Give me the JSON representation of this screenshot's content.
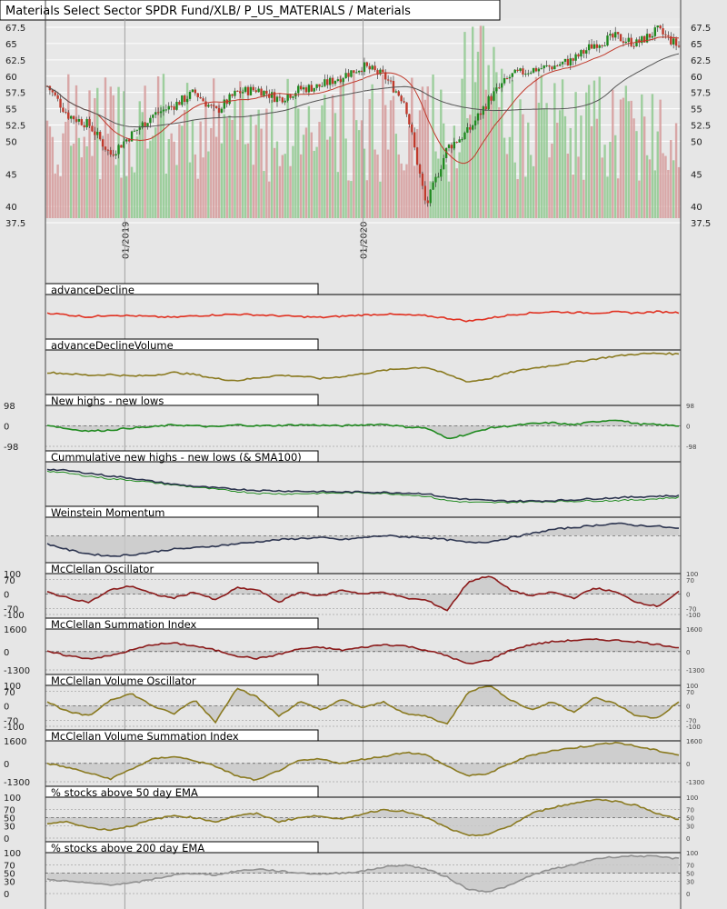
{
  "title": "Materials Select Sector SPDR Fund/XLB/ P_US_MATERIALS / Materials",
  "x_ticks": [
    "01/2019",
    "01/2020"
  ],
  "colors": {
    "background": "#e6e6e6",
    "up_candle": "#1f8a1f",
    "down_candle": "#c0392b",
    "up_volume": "#8fc98f",
    "down_volume": "#d59a9a",
    "sma_short": "#c0392b",
    "sma_long": "#555555",
    "advance_decline": "#e03020",
    "olive": "#8a7a20",
    "green_line": "#1f8a1f",
    "navy": "#2d3550",
    "dark_red": "#8b1a1a",
    "gray_line": "#909090",
    "fill": "#c8c8c8"
  },
  "price_panel": {
    "y_ticks": [
      "67.5",
      "65",
      "62.5",
      "60",
      "57.5",
      "55",
      "52.5",
      "50",
      "45",
      "40",
      "37.5"
    ]
  },
  "panels": [
    {
      "id": "advance-decline",
      "label": "advanceDecline",
      "ticks_left": [],
      "ticks_right": []
    },
    {
      "id": "advance-decline-volume",
      "label": "advanceDeclineVolume",
      "ticks_left": [],
      "ticks_right": []
    },
    {
      "id": "new-highs-lows",
      "label": "New highs - new lows",
      "ticks_left": [
        "98",
        "0",
        "-98"
      ],
      "ticks_right": [
        "98",
        "0",
        "-98"
      ]
    },
    {
      "id": "cumulative-new-highs-lows",
      "label": "Cummulative new highs - new lows (& SMA100)",
      "ticks_left": [],
      "ticks_right": []
    },
    {
      "id": "weinstein-momentum",
      "label": "Weinstein Momentum",
      "ticks_left": [],
      "ticks_right": []
    },
    {
      "id": "mcclellan-oscillator",
      "label": "McClellan Oscillator",
      "ticks_left": [
        "100",
        "70",
        "0",
        "-70",
        "-100"
      ],
      "ticks_right": [
        "100",
        "70",
        "0",
        "-70",
        "-100"
      ]
    },
    {
      "id": "mcclellan-summation",
      "label": "McClellan Summation Index",
      "ticks_left": [
        "1600",
        "0",
        "-1300"
      ],
      "ticks_right": [
        "1600",
        "0",
        "-1300"
      ]
    },
    {
      "id": "mcclellan-volume-oscillator",
      "label": "McClellan Volume Oscillator",
      "ticks_left": [
        "100",
        "70",
        "0",
        "-70",
        "-100"
      ],
      "ticks_right": [
        "100",
        "70",
        "0",
        "-70",
        "-100"
      ]
    },
    {
      "id": "mcclellan-volume-summation",
      "label": "McClellan Volume Summation Index",
      "ticks_left": [
        "1600",
        "0",
        "-1300"
      ],
      "ticks_right": [
        "1600",
        "0",
        "-1300"
      ]
    },
    {
      "id": "pct-above-50ema",
      "label": "% stocks above 50 day EMA",
      "ticks_left": [
        "100",
        "70",
        "50",
        "30",
        "0"
      ],
      "ticks_right": [
        "100",
        "70",
        "50",
        "30",
        "0"
      ]
    },
    {
      "id": "pct-above-200ema",
      "label": "% stocks above 200 day EMA",
      "ticks_left": [
        "100",
        "70",
        "50",
        "30",
        "0"
      ],
      "ticks_right": [
        "100",
        "70",
        "50",
        "30",
        "0"
      ]
    }
  ],
  "chart_data": {
    "type": "line",
    "title": "Materials Select Sector SPDR Fund/XLB/ P_US_MATERIALS / Materials",
    "x_range": [
      "2018-09",
      "2021-05"
    ],
    "x_tick_labels": [
      "01/2019",
      "01/2020"
    ],
    "price": {
      "ylim": [
        37.5,
        67.5
      ],
      "close": [
        {
          "x": "2018-09",
          "y": 58.5
        },
        {
          "x": "2018-10",
          "y": 54.0
        },
        {
          "x": "2018-11",
          "y": 52.5
        },
        {
          "x": "2018-12",
          "y": 48.0
        },
        {
          "x": "2019-01",
          "y": 51.0
        },
        {
          "x": "2019-02",
          "y": 54.0
        },
        {
          "x": "2019-03",
          "y": 55.5
        },
        {
          "x": "2019-04",
          "y": 57.5
        },
        {
          "x": "2019-05",
          "y": 54.5
        },
        {
          "x": "2019-06",
          "y": 57.5
        },
        {
          "x": "2019-07",
          "y": 58.0
        },
        {
          "x": "2019-08",
          "y": 56.5
        },
        {
          "x": "2019-09",
          "y": 58.0
        },
        {
          "x": "2019-10",
          "y": 58.5
        },
        {
          "x": "2019-11",
          "y": 60.0
        },
        {
          "x": "2019-12",
          "y": 61.5
        },
        {
          "x": "2020-01",
          "y": 60.0
        },
        {
          "x": "2020-02",
          "y": 56.0
        },
        {
          "x": "2020-03",
          "y": 40.0
        },
        {
          "x": "2020-04",
          "y": 49.0
        },
        {
          "x": "2020-05",
          "y": 51.5
        },
        {
          "x": "2020-06",
          "y": 56.5
        },
        {
          "x": "2020-07",
          "y": 60.0
        },
        {
          "x": "2020-08",
          "y": 61.0
        },
        {
          "x": "2020-09",
          "y": 61.5
        },
        {
          "x": "2020-10",
          "y": 62.5
        },
        {
          "x": "2020-11",
          "y": 65.0
        },
        {
          "x": "2020-12",
          "y": 66.0
        },
        {
          "x": "2021-01",
          "y": 65.0
        },
        {
          "x": "2021-02",
          "y": 67.0
        },
        {
          "x": "2021-03",
          "y": 64.5
        }
      ]
    },
    "series": [
      {
        "panel": "advance-decline",
        "values": [
          0.55,
          0.5,
          0.45,
          0.5,
          0.48,
          0.46,
          0.44,
          0.48,
          0.5,
          0.52,
          0.5,
          0.48,
          0.46,
          0.44,
          0.47,
          0.5,
          0.52,
          0.5,
          0.48,
          0.42,
          0.35,
          0.42,
          0.5,
          0.55,
          0.58,
          0.56,
          0.55,
          0.57,
          0.55,
          0.58,
          0.56
        ]
      },
      {
        "panel": "advance-decline-volume",
        "values": [
          0.45,
          0.42,
          0.38,
          0.4,
          0.36,
          0.38,
          0.45,
          0.4,
          0.3,
          0.25,
          0.32,
          0.38,
          0.36,
          0.3,
          0.35,
          0.42,
          0.5,
          0.55,
          0.58,
          0.4,
          0.22,
          0.3,
          0.45,
          0.55,
          0.62,
          0.7,
          0.78,
          0.85,
          0.9,
          0.92,
          0.9
        ]
      },
      {
        "panel": "new-highs-lows",
        "values": [
          5,
          -15,
          -25,
          -20,
          -10,
          -5,
          5,
          0,
          -5,
          5,
          0,
          2,
          5,
          3,
          0,
          5,
          8,
          -5,
          -10,
          -60,
          -40,
          -10,
          0,
          10,
          15,
          5,
          20,
          30,
          10,
          5,
          0
        ]
      },
      {
        "panel": "cumulative-new-highs-lows",
        "values": [
          0.82,
          0.78,
          0.72,
          0.65,
          0.6,
          0.52,
          0.45,
          0.4,
          0.36,
          0.33,
          0.3,
          0.29,
          0.28,
          0.27,
          0.26,
          0.26,
          0.25,
          0.24,
          0.22,
          0.12,
          0.08,
          0.05,
          0.04,
          0.04,
          0.05,
          0.07,
          0.1,
          0.12,
          0.14,
          0.16,
          0.17
        ]
      },
      {
        "panel": "weinstein-momentum",
        "values": [
          0.35,
          0.2,
          0.1,
          0.05,
          0.08,
          0.15,
          0.22,
          0.25,
          0.3,
          0.35,
          0.4,
          0.45,
          0.48,
          0.5,
          0.45,
          0.5,
          0.55,
          0.52,
          0.5,
          0.45,
          0.38,
          0.4,
          0.5,
          0.6,
          0.7,
          0.75,
          0.8,
          0.85,
          0.8,
          0.78,
          0.72
        ]
      },
      {
        "panel": "mcclellan-oscillator",
        "values": [
          10,
          -20,
          -40,
          20,
          40,
          0,
          -20,
          10,
          -30,
          30,
          20,
          -40,
          10,
          -10,
          20,
          0,
          10,
          -20,
          -30,
          -80,
          60,
          90,
          20,
          -10,
          10,
          -20,
          30,
          10,
          -40,
          -60,
          10
        ]
      },
      {
        "panel": "mcclellan-summation",
        "values": [
          0,
          -300,
          -500,
          -300,
          100,
          500,
          600,
          400,
          100,
          -300,
          -500,
          -200,
          200,
          300,
          100,
          300,
          500,
          400,
          100,
          -300,
          -900,
          -600,
          100,
          500,
          700,
          800,
          850,
          800,
          700,
          500,
          300
        ]
      },
      {
        "panel": "mcclellan-volume-oscillator",
        "values": [
          20,
          -30,
          -50,
          30,
          60,
          0,
          -40,
          30,
          -80,
          90,
          40,
          -50,
          20,
          -20,
          30,
          -10,
          20,
          -40,
          -50,
          -90,
          70,
          100,
          30,
          -20,
          20,
          -30,
          40,
          10,
          -50,
          -60,
          20
        ]
      },
      {
        "panel": "mcclellan-volume-summation",
        "values": [
          0,
          -300,
          -700,
          -1100,
          -400,
          300,
          500,
          200,
          -200,
          -900,
          -1200,
          -500,
          200,
          300,
          0,
          300,
          500,
          800,
          600,
          -200,
          -900,
          -700,
          0,
          600,
          900,
          1100,
          1300,
          1500,
          1200,
          900,
          600
        ]
      },
      {
        "panel": "pct-above-50ema",
        "values": [
          35,
          40,
          25,
          20,
          30,
          45,
          55,
          50,
          40,
          55,
          60,
          40,
          50,
          55,
          45,
          60,
          70,
          65,
          50,
          25,
          5,
          10,
          30,
          60,
          75,
          85,
          95,
          90,
          80,
          60,
          45
        ]
      },
      {
        "panel": "pct-above-200ema",
        "values": [
          35,
          30,
          25,
          22,
          25,
          35,
          45,
          50,
          45,
          55,
          60,
          55,
          50,
          48,
          50,
          55,
          65,
          70,
          60,
          40,
          10,
          5,
          20,
          45,
          60,
          70,
          85,
          90,
          92,
          90,
          85
        ]
      }
    ]
  }
}
